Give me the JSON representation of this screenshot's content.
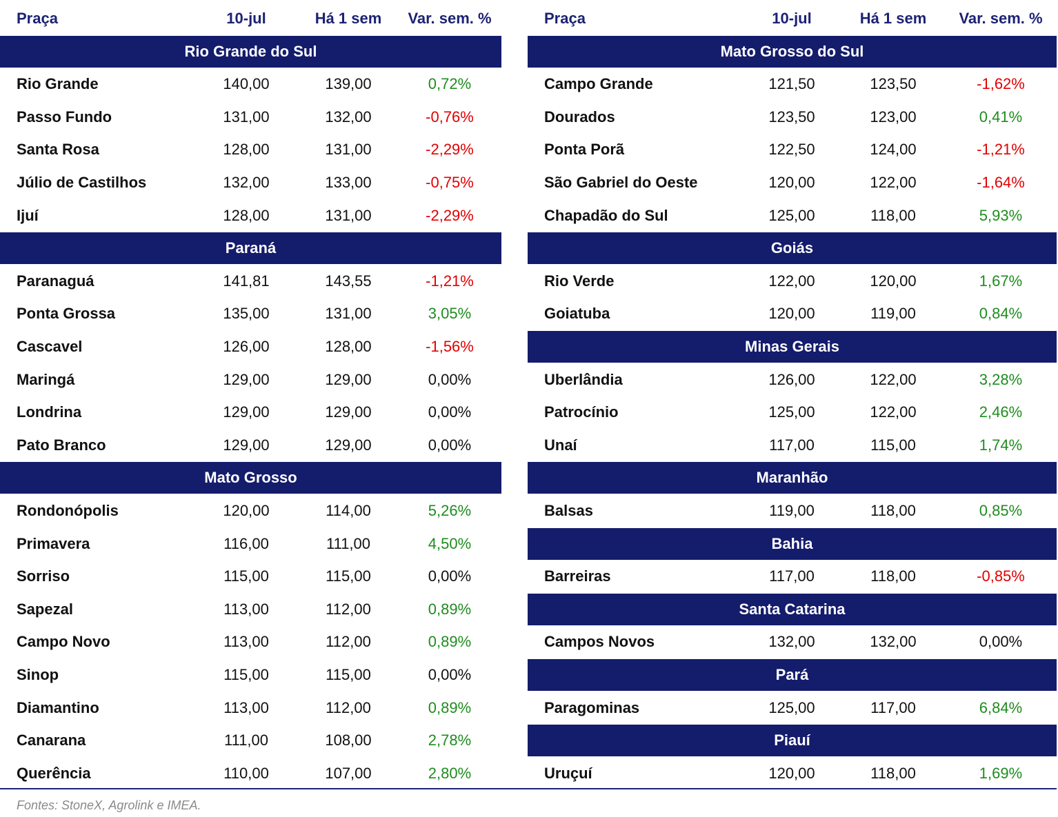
{
  "tables": [
    {
      "header": [
        "Praça",
        "10-jul",
        "Há 1 sem",
        "Var. sem. %"
      ],
      "sections": [
        {
          "title": "Rio Grande do Sul",
          "rows": [
            [
              "Rio Grande",
              "140,00",
              "139,00",
              "0,72%"
            ],
            [
              "Passo Fundo",
              "131,00",
              "132,00",
              "-0,76%"
            ],
            [
              "Santa Rosa",
              "128,00",
              "131,00",
              "-2,29%"
            ],
            [
              "Júlio de Castilhos",
              "132,00",
              "133,00",
              "-0,75%"
            ],
            [
              "Ijuí",
              "128,00",
              "131,00",
              "-2,29%"
            ]
          ]
        },
        {
          "title": "Paraná",
          "rows": [
            [
              "Paranaguá",
              "141,81",
              "143,55",
              "-1,21%"
            ],
            [
              "Ponta Grossa",
              "135,00",
              "131,00",
              "3,05%"
            ],
            [
              "Cascavel",
              "126,00",
              "128,00",
              "-1,56%"
            ],
            [
              "Maringá",
              "129,00",
              "129,00",
              "0,00%"
            ],
            [
              "Londrina",
              "129,00",
              "129,00",
              "0,00%"
            ],
            [
              "Pato Branco",
              "129,00",
              "129,00",
              "0,00%"
            ]
          ]
        },
        {
          "title": "Mato Grosso",
          "rows": [
            [
              "Rondonópolis",
              "120,00",
              "114,00",
              "5,26%"
            ],
            [
              "Primavera",
              "116,00",
              "111,00",
              "4,50%"
            ],
            [
              "Sorriso",
              "115,00",
              "115,00",
              "0,00%"
            ],
            [
              "Sapezal",
              "113,00",
              "112,00",
              "0,89%"
            ],
            [
              "Campo Novo",
              "113,00",
              "112,00",
              "0,89%"
            ],
            [
              "Sinop",
              "115,00",
              "115,00",
              "0,00%"
            ],
            [
              "Diamantino",
              "113,00",
              "112,00",
              "0,89%"
            ],
            [
              "Canarana",
              "111,00",
              "108,00",
              "2,78%"
            ],
            [
              "Querência",
              "110,00",
              "107,00",
              "2,80%"
            ]
          ]
        }
      ]
    },
    {
      "header": [
        "Praça",
        "10-jul",
        "Há 1 sem",
        "Var. sem. %"
      ],
      "sections": [
        {
          "title": "Mato Grosso do Sul",
          "rows": [
            [
              "Campo Grande",
              "121,50",
              "123,50",
              "-1,62%"
            ],
            [
              "Dourados",
              "123,50",
              "123,00",
              "0,41%"
            ],
            [
              "Ponta Porã",
              "122,50",
              "124,00",
              "-1,21%"
            ],
            [
              "São Gabriel do Oeste",
              "120,00",
              "122,00",
              "-1,64%"
            ],
            [
              "Chapadão do Sul",
              "125,00",
              "118,00",
              "5,93%"
            ]
          ]
        },
        {
          "title": "Goiás",
          "rows": [
            [
              "Rio Verde",
              "122,00",
              "120,00",
              "1,67%"
            ],
            [
              "Goiatuba",
              "120,00",
              "119,00",
              "0,84%"
            ]
          ]
        },
        {
          "title": "Minas Gerais",
          "rows": [
            [
              "Uberlândia",
              "126,00",
              "122,00",
              "3,28%"
            ],
            [
              "Patrocínio",
              "125,00",
              "122,00",
              "2,46%"
            ],
            [
              "Unaí",
              "117,00",
              "115,00",
              "1,74%"
            ]
          ]
        },
        {
          "title": "Maranhão",
          "rows": [
            [
              "Balsas",
              "119,00",
              "118,00",
              "0,85%"
            ]
          ]
        },
        {
          "title": "Bahia",
          "rows": [
            [
              "Barreiras",
              "117,00",
              "118,00",
              "-0,85%"
            ]
          ]
        },
        {
          "title": "Santa Catarina",
          "rows": [
            [
              "Campos Novos",
              "132,00",
              "132,00",
              "0,00%"
            ]
          ]
        },
        {
          "title": "Pará",
          "rows": [
            [
              "Paragominas",
              "125,00",
              "117,00",
              "6,84%"
            ]
          ]
        },
        {
          "title": "Piauí",
          "rows": [
            [
              "Uruçuí",
              "120,00",
              "118,00",
              "1,69%"
            ]
          ]
        }
      ]
    }
  ],
  "footer": "Fontes: StoneX, Agrolink e IMEA."
}
